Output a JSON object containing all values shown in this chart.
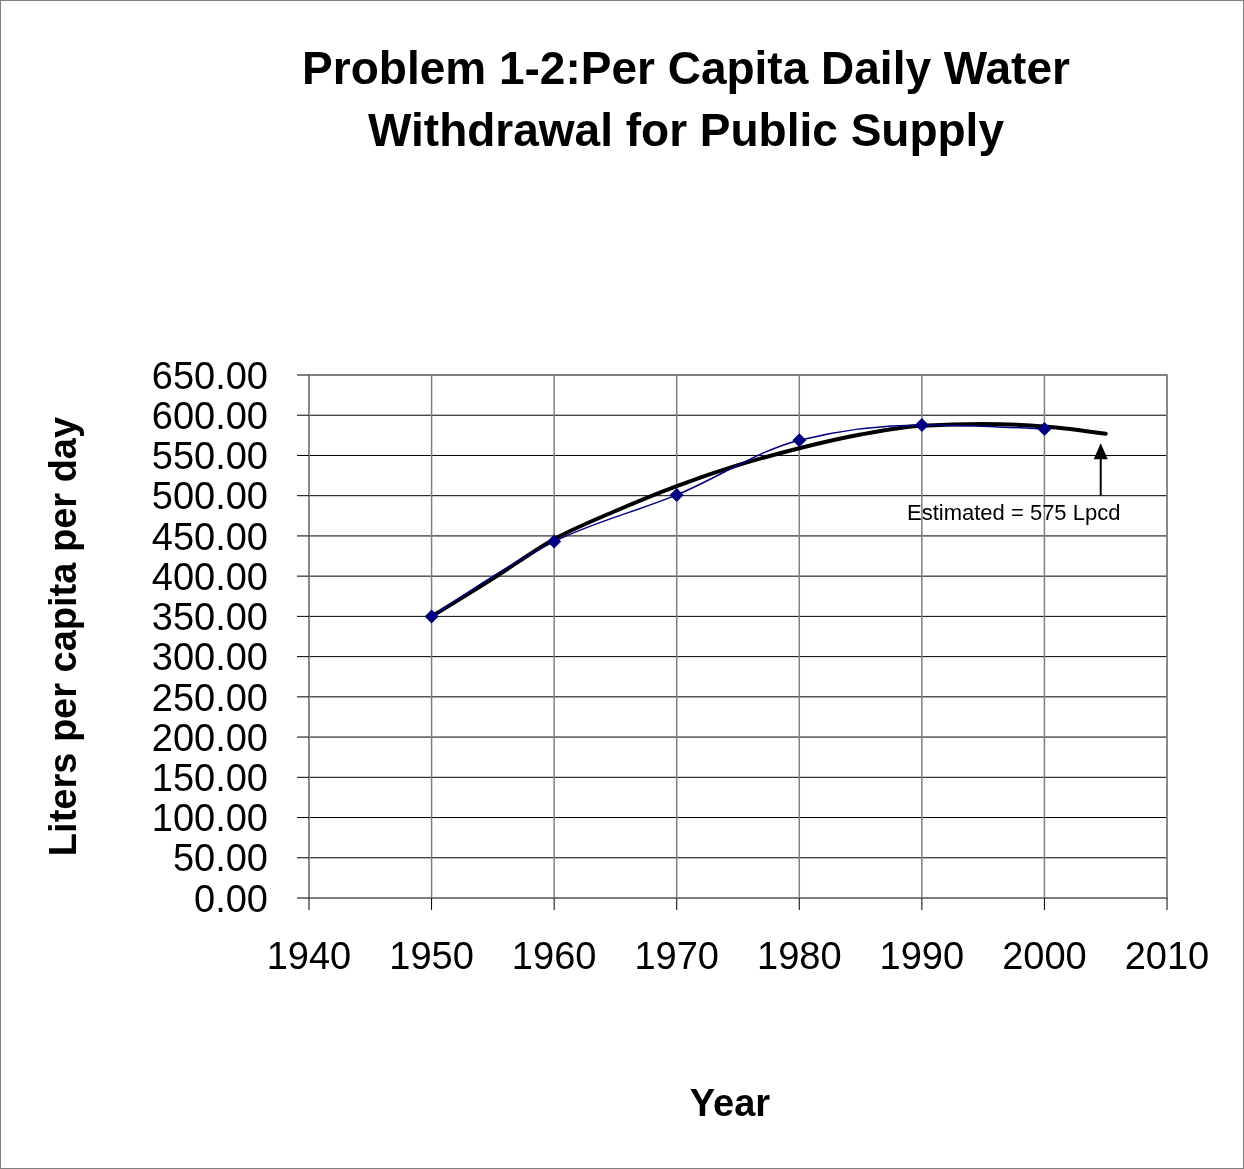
{
  "chart_data": {
    "type": "line",
    "title": "Problem 1-2:Per Capita Daily Water Withdrawal for Public Supply",
    "xlabel": "Year",
    "ylabel": "Liters per capita per day",
    "xlim": [
      1940,
      2010
    ],
    "xticks": [
      1940,
      1950,
      1960,
      1970,
      1980,
      1990,
      2000,
      2010
    ],
    "ylim": [
      0,
      650
    ],
    "yticks": [
      {
        "value": 0,
        "label": "0.00"
      },
      {
        "value": 50,
        "label": "50.00"
      },
      {
        "value": 100,
        "label": "100.00"
      },
      {
        "value": 150,
        "label": "150.00"
      },
      {
        "value": 200,
        "label": "200.00"
      },
      {
        "value": 250,
        "label": "250.00"
      },
      {
        "value": 300,
        "label": "300.00"
      },
      {
        "value": 350,
        "label": "350.00"
      },
      {
        "value": 400,
        "label": "400.00"
      },
      {
        "value": 450,
        "label": "450.00"
      },
      {
        "value": 500,
        "label": "500.00"
      },
      {
        "value": 550,
        "label": "550.00"
      },
      {
        "value": 600,
        "label": "600.00"
      },
      {
        "value": 650,
        "label": "650.00"
      }
    ],
    "grid": true,
    "series": [
      {
        "color": "#000080",
        "marker": "diamond",
        "x": [
          1950,
          1960,
          1970,
          1980,
          1990,
          2000
        ],
        "values": [
          350,
          443,
          501,
          569,
          588,
          583
        ]
      },
      {
        "type": "line",
        "color": "#000000",
        "marker": "none",
        "x": [
          1950,
          1955,
          1960,
          1965,
          1970,
          1975,
          1980,
          1985,
          1990,
          1995,
          2000,
          2005
        ],
        "values": [
          350,
          397,
          446,
          481,
          512,
          538,
          559,
          576,
          587,
          589,
          586,
          577
        ]
      }
    ],
    "annotations": [
      {
        "text": "Estimated = 575 Lpcd",
        "x": 2005,
        "y": 575
      }
    ]
  }
}
